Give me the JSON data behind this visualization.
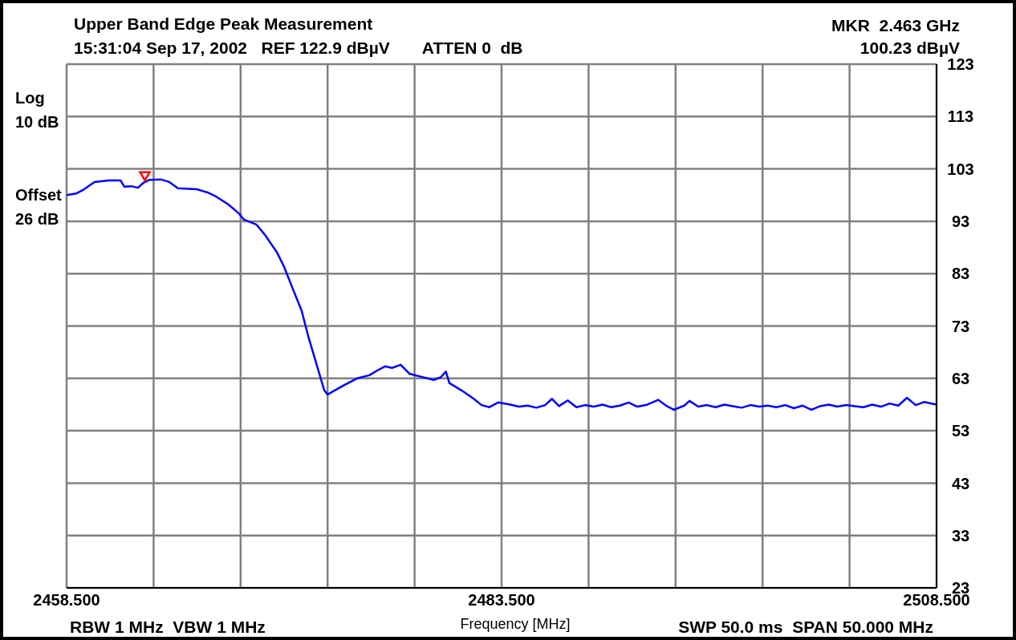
{
  "chart_data": {
    "type": "line",
    "title": "Upper Band Edge Peak Measurement",
    "subtitle": "15:31:04 Sep 17, 2002   REF 122.9 dBµV       ATTEN 0  dB",
    "xlabel": "Frequency [MHz]",
    "annotations": [
      "MKR  2.463 GHz",
      "100.23 dBµV",
      "Log",
      "10 dB",
      "Offset",
      "26 dB",
      "RBW 1 MHz  VBW 1 MHz",
      "SWP 50.0 ms  SPAN 50.000 MHz"
    ],
    "xlim": [
      2458.5,
      2508.5
    ],
    "xticks": [
      {
        "value": 2458.5,
        "label": "2458.500"
      },
      {
        "value": 2463.5,
        "label": null
      },
      {
        "value": 2468.5,
        "label": null
      },
      {
        "value": 2473.5,
        "label": null
      },
      {
        "value": 2478.5,
        "label": null
      },
      {
        "value": 2483.5,
        "label": "2483.500"
      },
      {
        "value": 2488.5,
        "label": null
      },
      {
        "value": 2493.5,
        "label": null
      },
      {
        "value": 2498.5,
        "label": null
      },
      {
        "value": 2503.5,
        "label": null
      },
      {
        "value": 2508.5,
        "label": "2508.500"
      }
    ],
    "ylim": [
      22.9,
      122.9
    ],
    "yticks": [
      {
        "value": 22.9,
        "label": "23"
      },
      {
        "value": 32.9,
        "label": "33"
      },
      {
        "value": 42.9,
        "label": "43"
      },
      {
        "value": 52.9,
        "label": "53"
      },
      {
        "value": 62.9,
        "label": "63"
      },
      {
        "value": 72.9,
        "label": "73"
      },
      {
        "value": 82.9,
        "label": "83"
      },
      {
        "value": 92.9,
        "label": "93"
      },
      {
        "value": 102.9,
        "label": "103"
      },
      {
        "value": 112.9,
        "label": "113"
      },
      {
        "value": 122.9,
        "label": "123"
      }
    ],
    "grid": true,
    "line_style": "solid",
    "series": [
      {
        "color": "#0000ff",
        "x": [
          2458.5,
          2459.05,
          2459.5,
          2460.1,
          2460.9,
          2461.6,
          2461.82,
          2462.2,
          2462.6,
          2462.9,
          2463.25,
          2463.9,
          2464.4,
          2464.9,
          2466.0,
          2466.6,
          2467.1,
          2467.8,
          2468.4,
          2468.7,
          2469.4,
          2469.9,
          2470.6,
          2471.0,
          2471.5,
          2472.0,
          2472.4,
          2472.9,
          2473.3,
          2473.5,
          2473.8,
          2474.5,
          2475.2,
          2475.9,
          2476.35,
          2476.8,
          2477.2,
          2477.7,
          2478.2,
          2478.9,
          2479.6,
          2480.0,
          2480.3,
          2480.5,
          2481.2,
          2481.9,
          2482.35,
          2482.8,
          2483.3,
          2484.0,
          2484.5,
          2485.0,
          2485.5,
          2486.0,
          2486.4,
          2486.8,
          2487.3,
          2487.8,
          2488.3,
          2488.8,
          2489.3,
          2489.8,
          2490.3,
          2490.8,
          2491.3,
          2491.8,
          2492.5,
          2493.0,
          2493.4,
          2494.0,
          2494.3,
          2494.8,
          2495.3,
          2495.8,
          2496.3,
          2496.8,
          2497.3,
          2497.8,
          2498.3,
          2498.8,
          2499.3,
          2499.8,
          2500.3,
          2500.8,
          2501.3,
          2501.8,
          2502.3,
          2502.8,
          2503.3,
          2503.8,
          2504.3,
          2504.8,
          2505.3,
          2505.8,
          2506.3,
          2506.8,
          2507.3,
          2507.8,
          2508.5
        ],
        "values": [
          97.9,
          98.2,
          99.0,
          100.4,
          100.7,
          100.7,
          99.5,
          99.6,
          99.3,
          100.2,
          100.8,
          100.9,
          100.4,
          99.2,
          99.0,
          98.4,
          97.6,
          96.1,
          94.4,
          93.2,
          92.3,
          90.3,
          86.9,
          84.2,
          80.0,
          75.9,
          70.8,
          65.2,
          60.7,
          59.8,
          60.4,
          61.7,
          62.9,
          63.5,
          64.4,
          65.2,
          64.9,
          65.5,
          63.8,
          63.2,
          62.6,
          63.1,
          64.2,
          62.0,
          60.6,
          59.0,
          57.8,
          57.4,
          58.3,
          57.9,
          57.5,
          57.7,
          57.3,
          57.8,
          59.0,
          57.6,
          58.7,
          57.4,
          57.8,
          57.5,
          57.9,
          57.4,
          57.7,
          58.3,
          57.5,
          57.8,
          58.8,
          57.6,
          56.9,
          57.7,
          58.6,
          57.5,
          57.8,
          57.4,
          57.9,
          57.6,
          57.3,
          57.8,
          57.5,
          57.7,
          57.4,
          57.8,
          57.2,
          57.7,
          56.9,
          57.6,
          57.9,
          57.5,
          57.8,
          57.6,
          57.4,
          57.9,
          57.5,
          58.1,
          57.7,
          59.2,
          57.8,
          58.4,
          57.9
        ]
      },
      {
        "type": "scatter",
        "color": "#ff0000",
        "marker": "triangle",
        "x": [
          2463.0
        ],
        "values": [
          101.5
        ]
      }
    ]
  }
}
